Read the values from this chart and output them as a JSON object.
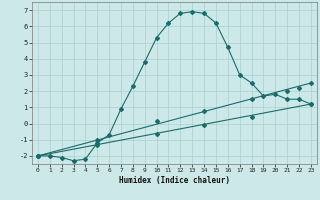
{
  "title": "",
  "xlabel": "Humidex (Indice chaleur)",
  "xlim": [
    -0.5,
    23.5
  ],
  "ylim": [
    -2.5,
    7.5
  ],
  "yticks": [
    -2,
    -1,
    0,
    1,
    2,
    3,
    4,
    5,
    6,
    7
  ],
  "xticks": [
    0,
    1,
    2,
    3,
    4,
    5,
    6,
    7,
    8,
    9,
    10,
    11,
    12,
    13,
    14,
    15,
    16,
    17,
    18,
    19,
    20,
    21,
    22,
    23
  ],
  "background_color": "#cde8e8",
  "grid_color": "#aacfcf",
  "line_color": "#1a6b6b",
  "line1_x": [
    0,
    1,
    2,
    3,
    4,
    5,
    6,
    7,
    8,
    9,
    10,
    11,
    12,
    13,
    14,
    15,
    16,
    17,
    18,
    19,
    20,
    21,
    22,
    23
  ],
  "line1_y": [
    -2.0,
    -2.0,
    -2.1,
    -2.3,
    -2.2,
    -1.2,
    -0.7,
    0.9,
    2.3,
    3.8,
    5.3,
    6.2,
    6.8,
    6.9,
    6.8,
    6.2,
    4.7,
    3.0,
    2.5,
    1.7,
    1.8,
    1.5,
    1.5,
    1.2
  ],
  "line2_x": [
    0,
    23
  ],
  "line2_y": [
    -2.0,
    2.5
  ],
  "line3_x": [
    0,
    23
  ],
  "line3_y": [
    -2.0,
    1.2
  ],
  "line2_markers_x": [
    0,
    5,
    10,
    14,
    18,
    21,
    22,
    23
  ],
  "line2_markers_y": [
    -2.0,
    -1.0,
    0.18,
    0.8,
    1.5,
    2.0,
    2.2,
    2.5
  ],
  "line3_markers_x": [
    0,
    5,
    10,
    14,
    18,
    23
  ],
  "line3_markers_y": [
    -2.0,
    -1.35,
    -0.65,
    -0.1,
    0.4,
    1.2
  ]
}
